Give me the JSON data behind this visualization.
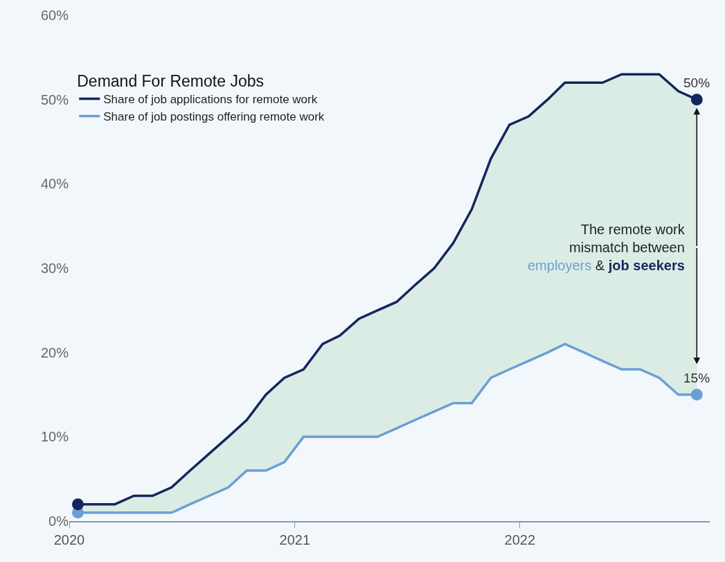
{
  "chart_data": {
    "type": "line",
    "legend_title": "Demand For Remote Jobs",
    "x": [
      "2020-01-15",
      "2020-02-15",
      "2020-03-15",
      "2020-04-15",
      "2020-05-15",
      "2020-06-15",
      "2020-07-15",
      "2020-08-15",
      "2020-09-15",
      "2020-10-15",
      "2020-11-15",
      "2020-12-15",
      "2021-01-15",
      "2021-02-15",
      "2021-03-15",
      "2021-04-15",
      "2021-05-15",
      "2021-06-15",
      "2021-07-15",
      "2021-08-15",
      "2021-09-15",
      "2021-10-15",
      "2021-11-15",
      "2021-12-15",
      "2022-01-15",
      "2022-02-15",
      "2022-03-15",
      "2022-04-15",
      "2022-05-15",
      "2022-06-15",
      "2022-07-15",
      "2022-08-15",
      "2022-09-15",
      "2022-10-15"
    ],
    "series": [
      {
        "name": "Share of job applications for remote work",
        "color": "#14265e",
        "values": [
          2,
          2,
          2,
          3,
          3,
          4,
          6,
          8,
          10,
          12,
          15,
          17,
          18,
          21,
          22,
          24,
          25,
          26,
          28,
          30,
          33,
          37,
          43,
          47,
          48,
          50,
          52,
          52,
          52,
          53,
          53,
          53,
          51,
          50
        ],
        "lower": [
          1,
          1,
          1,
          1,
          1,
          1,
          2,
          3,
          4,
          6,
          6,
          7,
          10,
          10,
          10,
          10,
          10,
          11,
          12,
          13,
          14,
          14,
          17,
          18,
          19,
          20,
          21,
          20,
          19,
          18,
          18,
          17,
          15,
          15
        ],
        "upper": [
          2,
          2,
          2,
          3,
          3,
          4,
          6,
          8,
          10,
          12,
          15,
          17,
          18,
          21,
          22,
          24,
          25,
          26,
          28,
          30,
          33,
          37,
          43,
          47,
          48,
          50,
          52,
          52,
          52,
          53,
          53,
          53,
          51,
          50
        ]
      },
      {
        "name": "Share of job postings offering remote work",
        "color": "#6b9fd4",
        "values": [
          1,
          1,
          1,
          1,
          1,
          1,
          2,
          3,
          4,
          6,
          6,
          7,
          10,
          10,
          10,
          10,
          10,
          11,
          12,
          13,
          14,
          14,
          17,
          18,
          19,
          20,
          21,
          20,
          19,
          18,
          18,
          17,
          15,
          15
        ]
      }
    ],
    "xlim": [
      "2020-01-01",
      "2022-11-05"
    ],
    "xticks": [
      {
        "value": "2020-01-01",
        "label": "2020"
      },
      {
        "value": "2021-01-01",
        "label": "2021"
      },
      {
        "value": "2022-01-01",
        "label": "2022"
      }
    ],
    "ylim": [
      0,
      60
    ],
    "yticks": [
      {
        "value": 0,
        "label": "0%"
      },
      {
        "value": 10,
        "label": "10%"
      },
      {
        "value": 20,
        "label": "20%"
      },
      {
        "value": 30,
        "label": "30%"
      },
      {
        "value": 40,
        "label": "40%"
      },
      {
        "value": 50,
        "label": "50%"
      },
      {
        "value": 60,
        "label": "60%"
      }
    ],
    "annotations": [
      {
        "text": "50%",
        "x": "2022-10-15",
        "y": 50
      },
      {
        "text": "15%",
        "x": "2022-10-15",
        "y": 15
      },
      {
        "text": "The remote work\nmismatch between\nemployers & job seekers",
        "x": "2022-10-15",
        "y": 32.5
      }
    ],
    "grid": false,
    "legend": "top left"
  }
}
